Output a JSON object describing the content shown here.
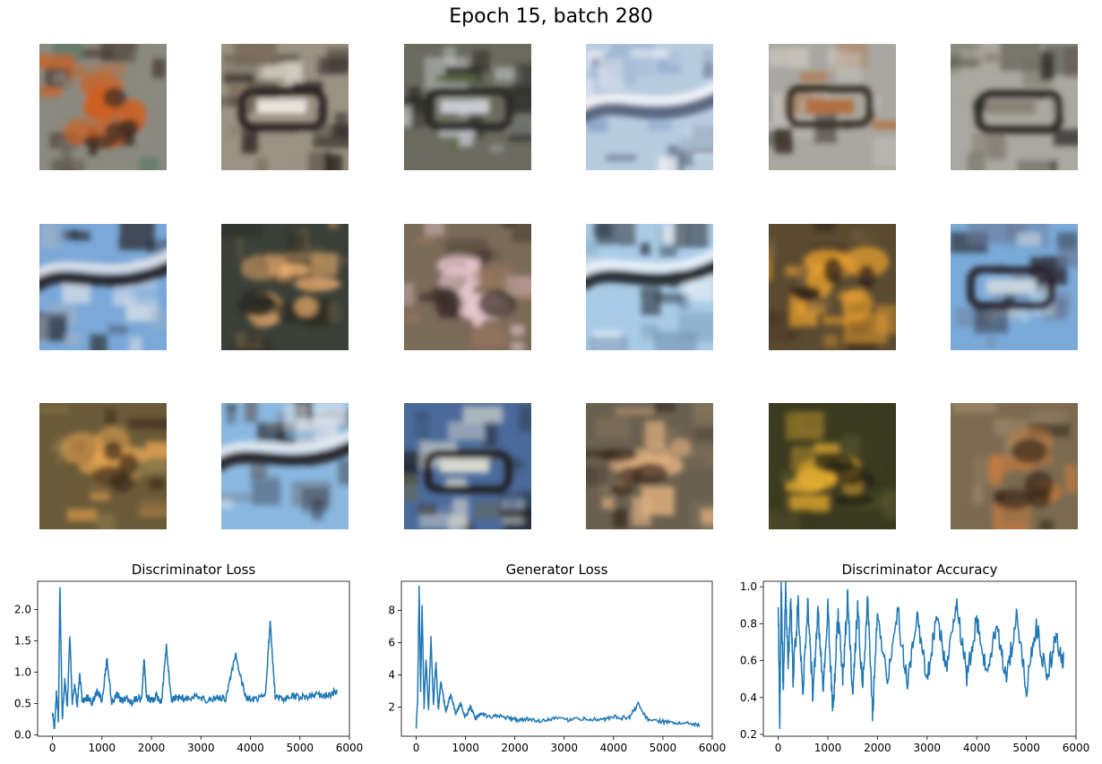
{
  "figure": {
    "title": "Epoch 15, batch 280"
  },
  "samples": [
    {
      "palette": [
        "#8a8a80",
        "#3a2a20",
        "#d06020",
        "#5e7a6a"
      ],
      "style": "fire"
    },
    {
      "palette": [
        "#9a9282",
        "#2a2320",
        "#e8e4dc",
        "#7a6a58"
      ],
      "style": "car"
    },
    {
      "palette": [
        "#6a6a5e",
        "#2a2a26",
        "#c8ccd0",
        "#5a6a3a"
      ],
      "style": "car"
    },
    {
      "palette": [
        "#b8cce0",
        "#5a6880",
        "#f0f2f6",
        "#8aa4c8"
      ],
      "style": "sky"
    },
    {
      "palette": [
        "#a8a8a0",
        "#3a3028",
        "#b07040",
        "#c8c4bc"
      ],
      "style": "car"
    },
    {
      "palette": [
        "#aaa8a0",
        "#2e2a26",
        "#8a8478",
        "#6a6a5e"
      ],
      "style": "car"
    },
    {
      "palette": [
        "#7aa8d8",
        "#2a2c30",
        "#d8dee8",
        "#9ab0c8"
      ],
      "style": "sky"
    },
    {
      "palette": [
        "#3a4038",
        "#2a2a22",
        "#f0b070",
        "#6a5a40"
      ],
      "style": "fire"
    },
    {
      "palette": [
        "#7a6a58",
        "#3a2e26",
        "#e8c8d0",
        "#a07a60"
      ],
      "style": "fire"
    },
    {
      "palette": [
        "#a8cce8",
        "#2a3038",
        "#e8f0f8",
        "#7a9ab8"
      ],
      "style": "sky"
    },
    {
      "palette": [
        "#5a4a30",
        "#2a2018",
        "#e8a030",
        "#7a6040"
      ],
      "style": "fire"
    },
    {
      "palette": [
        "#7aaad8",
        "#2a2830",
        "#c8d4e0",
        "#6a7a98"
      ],
      "style": "car"
    },
    {
      "palette": [
        "#6a5a38",
        "#3a2a18",
        "#e0a050",
        "#8a7a4a"
      ],
      "style": "fire"
    },
    {
      "palette": [
        "#8ab8e0",
        "#2a2a30",
        "#e0e8f0",
        "#6a7078"
      ],
      "style": "sky"
    },
    {
      "palette": [
        "#4a6a9a",
        "#222428",
        "#d8d8d0",
        "#6a6a58"
      ],
      "style": "car"
    },
    {
      "palette": [
        "#6a6050",
        "#3a2a20",
        "#e0b080",
        "#8a7a60"
      ],
      "style": "fire"
    },
    {
      "palette": [
        "#3a3a20",
        "#1e1e12",
        "#e8b030",
        "#5a5a30"
      ],
      "style": "fire"
    },
    {
      "palette": [
        "#7a6a50",
        "#3a2a1a",
        "#c07a40",
        "#9a8a6a"
      ],
      "style": "fire"
    }
  ],
  "chart_data": [
    {
      "type": "line",
      "title": "Discriminator Loss",
      "xlim": [
        -300,
        6000
      ],
      "ylim": [
        -0.02,
        2.45
      ],
      "xticks": [
        0,
        1000,
        2000,
        3000,
        4000,
        5000,
        6000
      ],
      "xtick_labels": [
        "0",
        "1000",
        "2000",
        "3000",
        "4000",
        "5000",
        "6000"
      ],
      "yticks": [
        0.0,
        0.5,
        1.0,
        1.5,
        2.0
      ],
      "ytick_labels": [
        "0.0",
        "0.5",
        "1.0",
        "1.5",
        "2.0"
      ],
      "color": "#1f77b4",
      "x": [
        0,
        40,
        80,
        120,
        150,
        200,
        250,
        300,
        350,
        400,
        450,
        500,
        550,
        600,
        700,
        800,
        900,
        1000,
        1100,
        1200,
        1300,
        1400,
        1500,
        1600,
        1700,
        1800,
        1850,
        1900,
        2000,
        2100,
        2200,
        2300,
        2400,
        2500,
        2700,
        2900,
        3100,
        3300,
        3500,
        3700,
        3900,
        4100,
        4300,
        4400,
        4500,
        4700,
        4900,
        5100,
        5300,
        5500,
        5700,
        5750
      ],
      "y": [
        0.35,
        0.1,
        0.7,
        0.2,
        2.37,
        0.25,
        0.9,
        0.4,
        1.6,
        0.5,
        0.8,
        0.45,
        1.0,
        0.55,
        0.6,
        0.5,
        0.7,
        0.55,
        1.2,
        0.5,
        0.65,
        0.55,
        0.6,
        0.5,
        0.6,
        0.55,
        1.2,
        0.6,
        0.55,
        0.62,
        0.5,
        1.4,
        0.55,
        0.6,
        0.58,
        0.62,
        0.55,
        0.6,
        0.58,
        1.27,
        0.6,
        0.55,
        0.62,
        1.8,
        0.6,
        0.58,
        0.62,
        0.6,
        0.65,
        0.62,
        0.68,
        0.7
      ]
    },
    {
      "type": "line",
      "title": "Generator Loss",
      "xlim": [
        -300,
        6000
      ],
      "ylim": [
        0.2,
        9.8
      ],
      "xticks": [
        0,
        1000,
        2000,
        3000,
        4000,
        5000,
        6000
      ],
      "xtick_labels": [
        "0",
        "1000",
        "2000",
        "3000",
        "4000",
        "5000",
        "6000"
      ],
      "yticks": [
        2,
        4,
        6,
        8
      ],
      "ytick_labels": [
        "2",
        "4",
        "6",
        "8"
      ],
      "color": "#1f77b4",
      "x": [
        0,
        30,
        60,
        90,
        120,
        160,
        200,
        250,
        300,
        350,
        400,
        450,
        500,
        600,
        700,
        800,
        900,
        1000,
        1100,
        1200,
        1300,
        1500,
        1700,
        1900,
        2100,
        2300,
        2500,
        2800,
        3100,
        3400,
        3700,
        4000,
        4300,
        4500,
        4700,
        5000,
        5300,
        5500,
        5750
      ],
      "y": [
        0.8,
        2.5,
        9.5,
        3.0,
        8.3,
        2.0,
        5.0,
        1.8,
        6.4,
        2.2,
        4.8,
        1.8,
        3.6,
        1.7,
        2.8,
        1.6,
        2.2,
        1.4,
        2.0,
        1.3,
        1.6,
        1.4,
        1.5,
        1.3,
        1.2,
        1.3,
        1.1,
        1.3,
        1.2,
        1.3,
        1.2,
        1.4,
        1.3,
        2.2,
        1.2,
        1.1,
        1.0,
        1.0,
        0.9
      ]
    },
    {
      "type": "line",
      "title": "Discriminator Accuracy",
      "xlim": [
        -300,
        6000
      ],
      "ylim": [
        0.19,
        1.03
      ],
      "xticks": [
        0,
        1000,
        2000,
        3000,
        4000,
        5000,
        6000
      ],
      "xtick_labels": [
        "0",
        "1000",
        "2000",
        "3000",
        "4000",
        "5000",
        "6000"
      ],
      "yticks": [
        0.2,
        0.4,
        0.6,
        0.8,
        1.0
      ],
      "ytick_labels": [
        "0.2",
        "0.4",
        "0.6",
        "0.8",
        "1.0"
      ],
      "color": "#1f77b4",
      "x": [
        0,
        30,
        60,
        100,
        150,
        200,
        250,
        300,
        400,
        500,
        600,
        700,
        800,
        900,
        1000,
        1100,
        1200,
        1300,
        1400,
        1500,
        1600,
        1700,
        1800,
        1900,
        2000,
        2200,
        2400,
        2600,
        2800,
        3000,
        3200,
        3400,
        3600,
        3800,
        4000,
        4200,
        4400,
        4600,
        4800,
        5000,
        5200,
        5400,
        5600,
        5750
      ],
      "y": [
        0.95,
        0.24,
        1.0,
        0.45,
        0.98,
        0.55,
        0.95,
        0.5,
        0.9,
        0.45,
        0.92,
        0.4,
        0.88,
        0.45,
        0.9,
        0.3,
        0.85,
        0.5,
        0.95,
        0.4,
        0.9,
        0.45,
        0.95,
        0.3,
        0.85,
        0.5,
        0.88,
        0.48,
        0.85,
        0.5,
        0.85,
        0.55,
        0.9,
        0.52,
        0.82,
        0.55,
        0.8,
        0.5,
        0.85,
        0.45,
        0.8,
        0.5,
        0.72,
        0.6
      ]
    }
  ]
}
